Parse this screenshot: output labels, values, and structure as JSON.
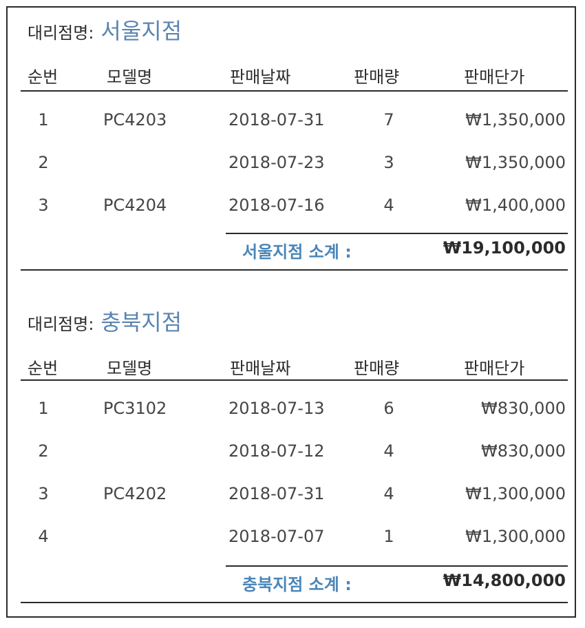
{
  "header_label": "대리점명:",
  "columns": [
    "순번",
    "모델명",
    "판매날짜",
    "판매량",
    "판매단가"
  ],
  "groups": [
    {
      "branch": "서울지점",
      "rows": [
        {
          "no": "1",
          "model": "PC4203",
          "date": "2018-07-31",
          "qty": "7",
          "price": "₩1,350,000"
        },
        {
          "no": "2",
          "model": "",
          "date": "2018-07-23",
          "qty": "3",
          "price": "₩1,350,000"
        },
        {
          "no": "3",
          "model": "PC4204",
          "date": "2018-07-16",
          "qty": "4",
          "price": "₩1,400,000"
        }
      ],
      "subtotal_label": "서울지점 소계 :",
      "subtotal_value": "₩19,100,000"
    },
    {
      "branch": "충북지점",
      "rows": [
        {
          "no": "1",
          "model": "PC3102",
          "date": "2018-07-13",
          "qty": "6",
          "price": "₩830,000"
        },
        {
          "no": "2",
          "model": "",
          "date": "2018-07-12",
          "qty": "4",
          "price": "₩830,000"
        },
        {
          "no": "3",
          "model": "PC4202",
          "date": "2018-07-31",
          "qty": "4",
          "price": "₩1,300,000"
        },
        {
          "no": "4",
          "model": "",
          "date": "2018-07-07",
          "qty": "1",
          "price": "₩1,300,000"
        }
      ],
      "subtotal_label": "충북지점 소계 :",
      "subtotal_value": "₩14,800,000"
    }
  ]
}
